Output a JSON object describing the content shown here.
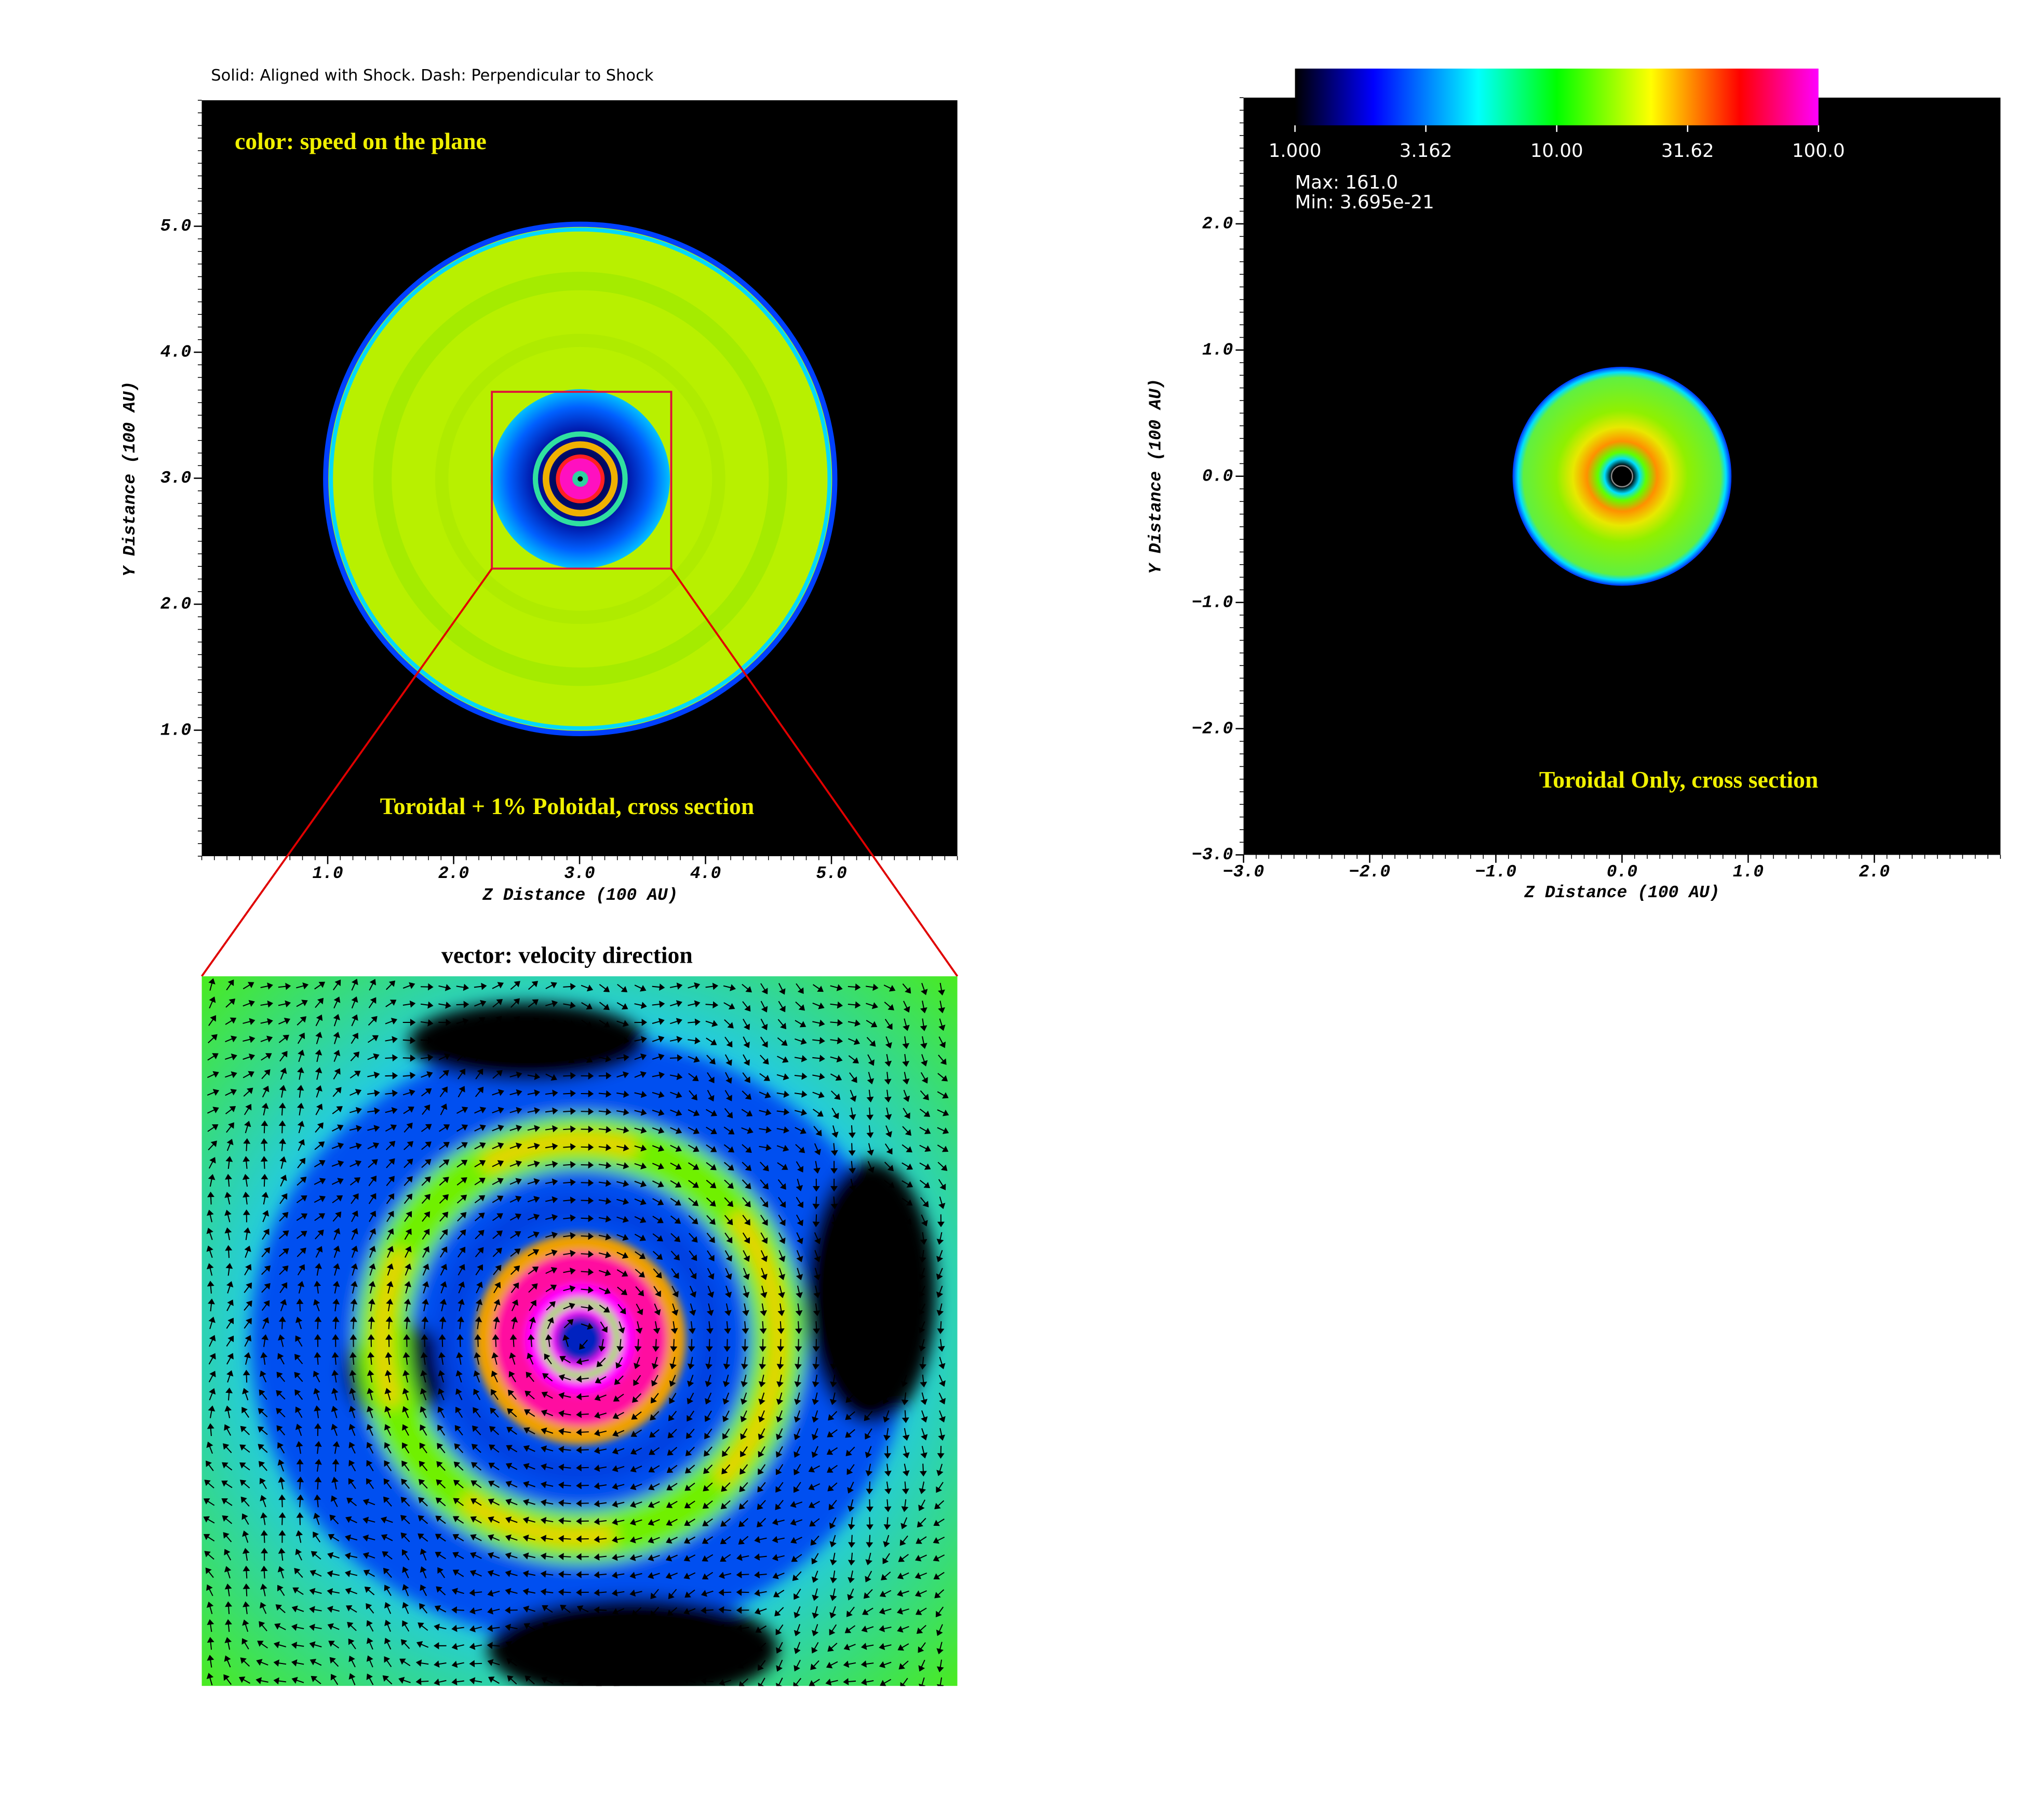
{
  "header_text": "Solid: Aligned with Shock. Dash: Perpendicular to Shock",
  "panels": [
    {
      "annotations": [
        "color: speed on the plane",
        "Toroidal + 1% Poloidal, cross section"
      ],
      "xlabel": "Z Distance (100 AU)",
      "ylabel": "Y Distance (100 AU)",
      "xlim": [
        0,
        6
      ],
      "ylim": [
        0,
        6
      ],
      "xticks": [
        {
          "value": 1,
          "label": "1.0"
        },
        {
          "value": 2,
          "label": "2.0"
        },
        {
          "value": 3,
          "label": "3.0"
        },
        {
          "value": 4,
          "label": "4.0"
        },
        {
          "value": 5,
          "label": "5.0"
        }
      ],
      "yticks": [
        {
          "value": 1,
          "label": "1.0"
        },
        {
          "value": 2,
          "label": "2.0"
        },
        {
          "value": 3,
          "label": "3.0"
        },
        {
          "value": 4,
          "label": "4.0"
        },
        {
          "value": 5,
          "label": "5.0"
        }
      ]
    },
    {
      "annotations": [
        "Toroidal Only, cross section"
      ],
      "xlabel": "Z Distance (100 AU)",
      "ylabel": "Y Distance (100 AU)",
      "xlim": [
        -3,
        3
      ],
      "ylim": [
        -3,
        3
      ],
      "xticks": [
        {
          "value": -3,
          "label": "−3.0"
        },
        {
          "value": -2,
          "label": "−2.0"
        },
        {
          "value": -1,
          "label": "−1.0"
        },
        {
          "value": 0,
          "label": "0.0"
        },
        {
          "value": 1,
          "label": "1.0"
        },
        {
          "value": 2,
          "label": "2.0"
        }
      ],
      "yticks": [
        {
          "value": -3,
          "label": "−3.0"
        },
        {
          "value": -2,
          "label": "−2.0"
        },
        {
          "value": -1,
          "label": "−1.0"
        },
        {
          "value": 0,
          "label": "0.0"
        },
        {
          "value": 1,
          "label": "1.0"
        },
        {
          "value": 2,
          "label": "2.0"
        }
      ],
      "colorbar": {
        "log": true,
        "lim": [
          1,
          100
        ],
        "ticks": [
          {
            "value": 1,
            "label": "1.000"
          },
          3.162,
          {
            "value": 10,
            "label": "10.00"
          },
          31.62,
          {
            "value": 100,
            "label": "100.0"
          }
        ],
        "max_text": "Max:  161.0",
        "min_text": "Min:  3.695e-21"
      }
    },
    {
      "title": "vector: velocity direction"
    }
  ]
}
